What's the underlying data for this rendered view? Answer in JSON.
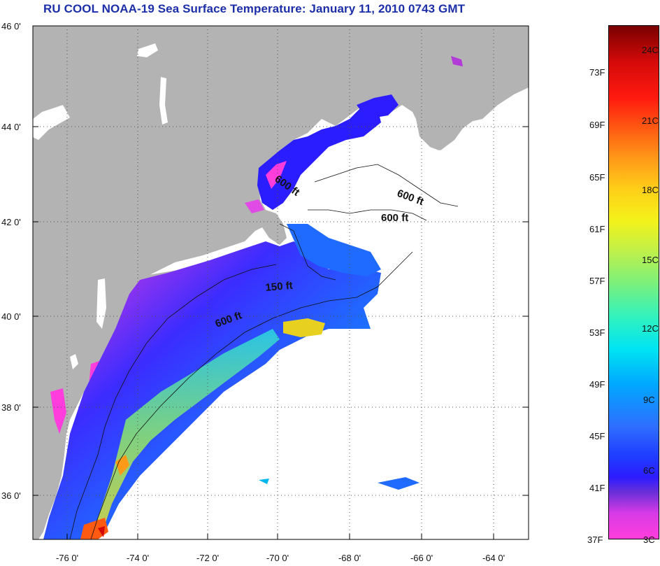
{
  "title": "RU COOL  NOAA-19  Sea Surface Temperature:  January 11, 2010 0743 GMT",
  "colors": {
    "land": "#b3b3b3",
    "water_nodata": "#ffffff",
    "title": "#1c2fa8",
    "grid": "#555555"
  },
  "map": {
    "lat_labels": [
      "46 0'",
      "44 0'",
      "42 0'",
      "40 0'",
      "38 0'",
      "36 0'"
    ],
    "lon_labels": [
      "-76 0'",
      "-74 0'",
      "-72 0'",
      "-70 0'",
      "-68 0'",
      "-66 0'",
      "-64 0'"
    ],
    "depth_labels": [
      "600 ft",
      "600 ft",
      "600 ft",
      "150 ft",
      "600 ft"
    ]
  },
  "colorbar": {
    "fahrenheit": [
      "73F",
      "69F",
      "65F",
      "61F",
      "57F",
      "53F",
      "49F",
      "45F",
      "41F",
      "37F"
    ],
    "celsius": [
      "24C",
      "21C",
      "18C",
      "15C",
      "12C",
      "9C",
      "6C",
      "3C"
    ]
  }
}
